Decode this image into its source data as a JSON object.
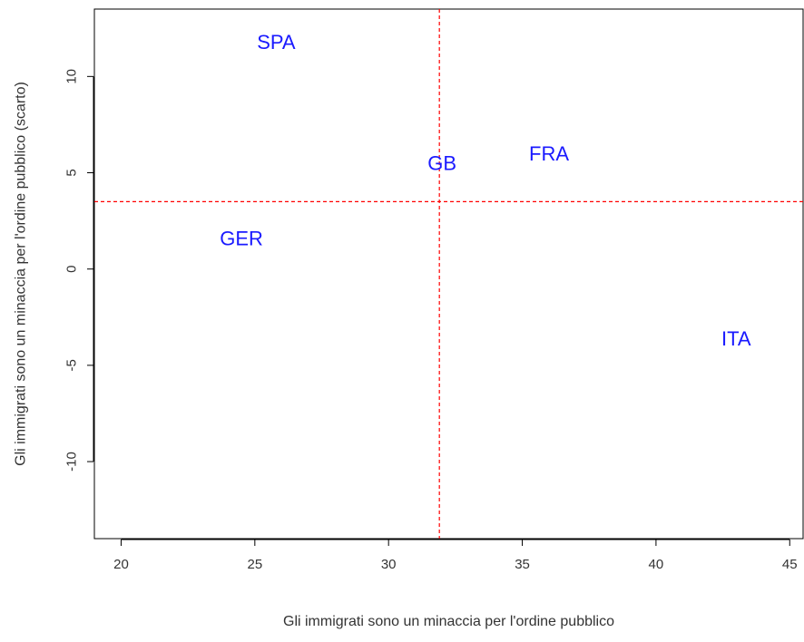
{
  "chart_data": {
    "type": "scatter",
    "title": "",
    "xlabel": "Gli immigrati sono un minaccia per l'ordine pubblico",
    "ylabel": "Gli immigrati sono un minaccia per l'ordine pubblico (scarto)",
    "xlim": [
      19,
      45.5
    ],
    "ylim": [
      -14,
      13.5
    ],
    "xticks": [
      20,
      25,
      30,
      35,
      40,
      45
    ],
    "yticks": [
      -10,
      -5,
      0,
      5,
      10
    ],
    "grid": false,
    "legend": "none",
    "points": [
      {
        "label": "SPA",
        "x": 25.8,
        "y": 11.8
      },
      {
        "label": "GB",
        "x": 32.0,
        "y": 5.5
      },
      {
        "label": "FRA",
        "x": 36.0,
        "y": 6.0
      },
      {
        "label": "GER",
        "x": 24.5,
        "y": 1.6
      },
      {
        "label": "ITA",
        "x": 43.0,
        "y": -3.6
      }
    ],
    "reference_lines": {
      "vertical_x": 31.9,
      "horizontal_y": 3.5,
      "color": "#ff0000",
      "style": "dashed"
    },
    "point_color": "#1a1aff"
  }
}
